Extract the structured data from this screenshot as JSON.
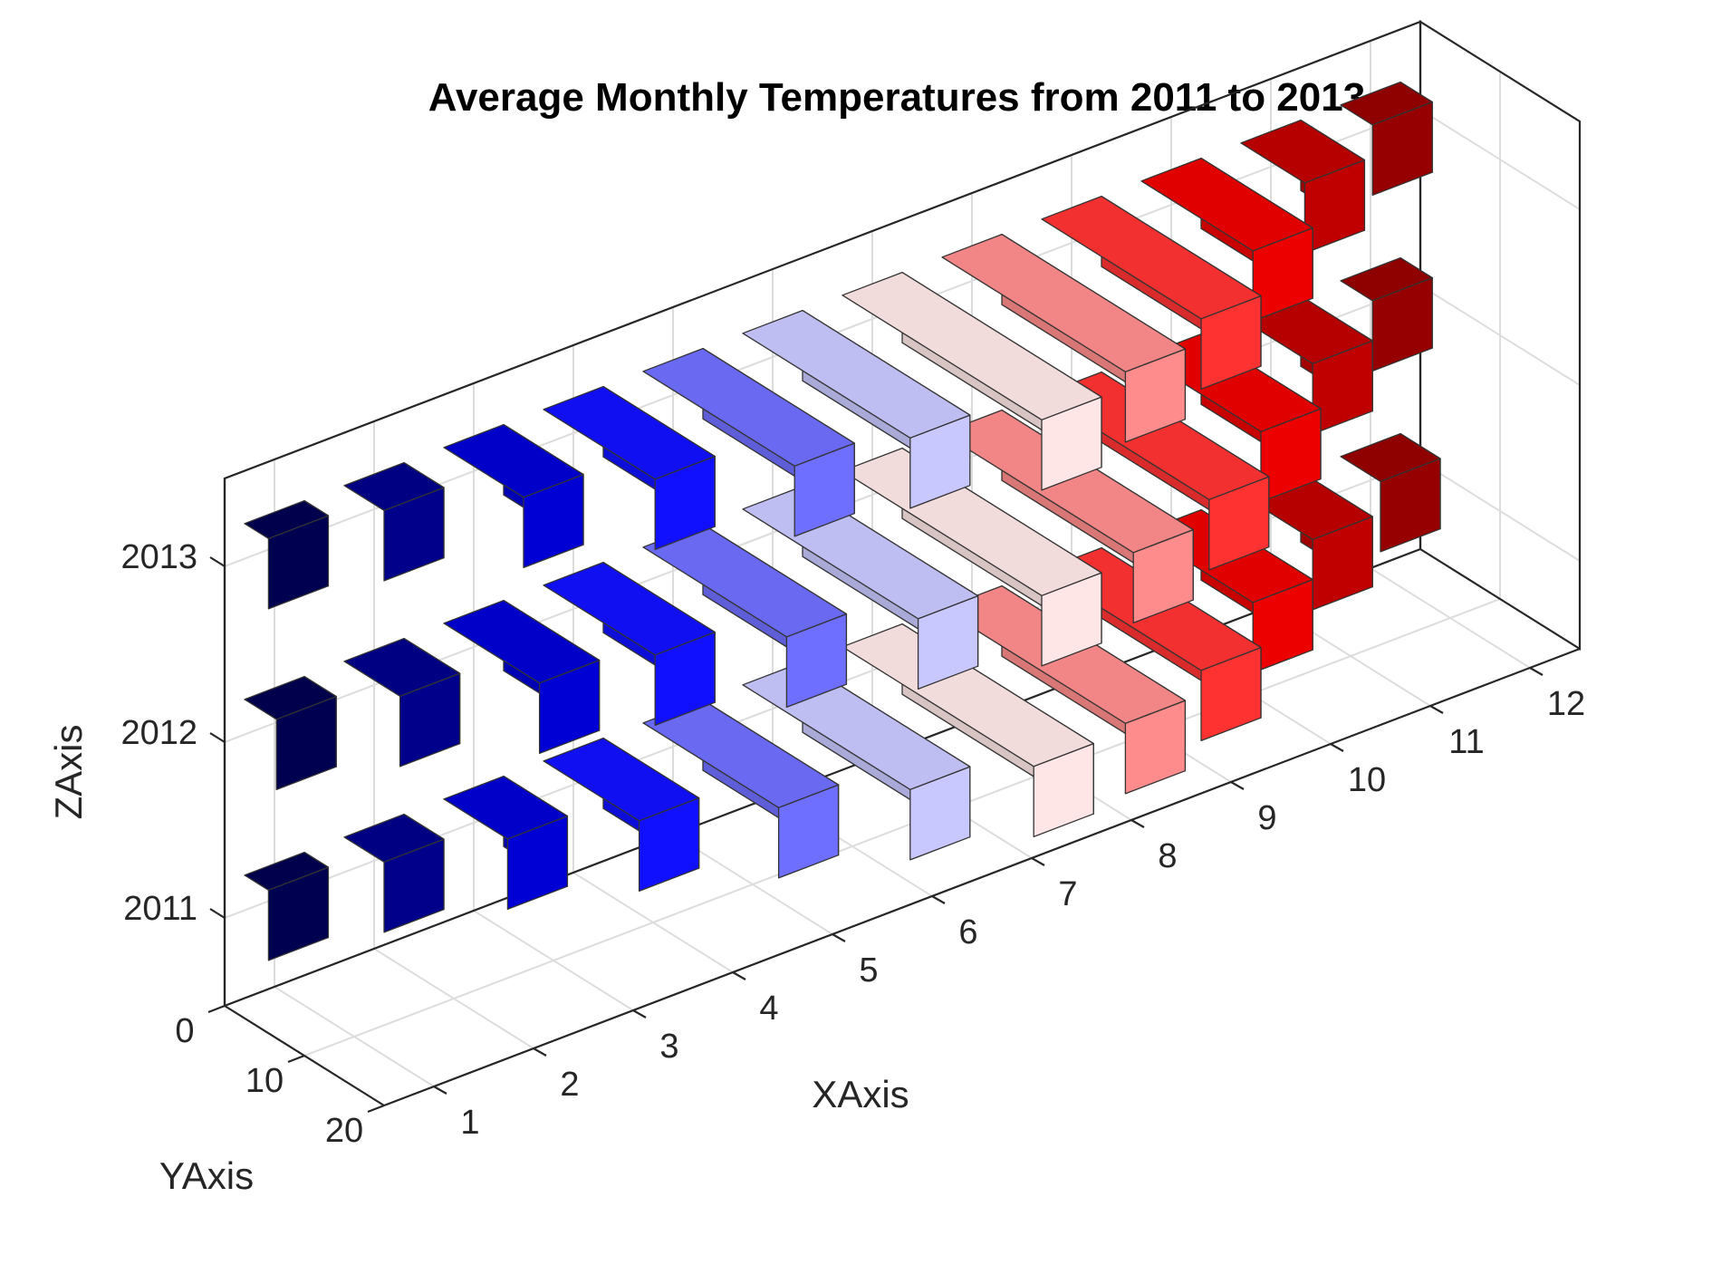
{
  "chart_data": {
    "type": "bar3",
    "title": "Average Monthly Temperatures from 2011 to 2013",
    "xlabel": "XAxis",
    "ylabel": "YAxis",
    "zlabel": "ZAxis",
    "x_ticks": [
      "1",
      "2",
      "3",
      "4",
      "5",
      "6",
      "7",
      "8",
      "9",
      "10",
      "11",
      "12"
    ],
    "y_ticks": [
      "0",
      "10",
      "20"
    ],
    "z_ticks": [
      "2011",
      "2012",
      "2013"
    ],
    "z_range": [
      2010.5,
      2013.5
    ],
    "y_range": [
      0,
      20
    ],
    "grid": true,
    "series": [
      {
        "name": "2011",
        "z": 2011,
        "values": [
          3,
          5,
          8,
          12,
          17,
          21,
          24,
          23,
          20,
          14,
          9,
          5
        ]
      },
      {
        "name": "2012",
        "z": 2012,
        "values": [
          4,
          7,
          12,
          14,
          18,
          22,
          25,
          24,
          21,
          15,
          9,
          4
        ]
      },
      {
        "name": "2013",
        "z": 2013,
        "values": [
          3,
          5,
          10,
          14,
          19,
          21,
          25,
          23,
          20,
          14,
          8,
          4
        ]
      }
    ],
    "colors": [
      "#000050",
      "#00008a",
      "#0000d4",
      "#1010ff",
      "#6e6eff",
      "#c8c8ff",
      "#ffe6e6",
      "#ff8c8c",
      "#ff3232",
      "#ec0000",
      "#c00000",
      "#960000"
    ]
  }
}
